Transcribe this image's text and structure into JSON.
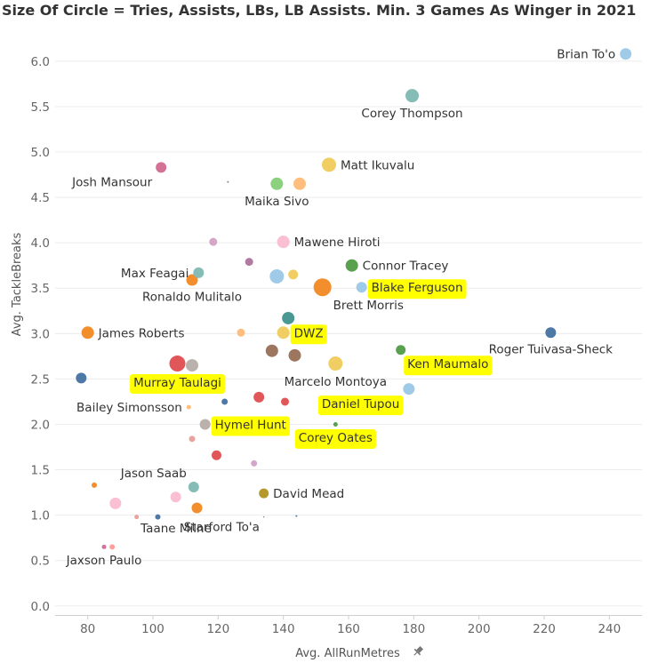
{
  "chart_data": {
    "type": "scatter",
    "title": "Size Of Circle = Tries, Assists, LBs, LB Assists. Min. 3 Games As Winger in 2021",
    "xlabel": "Avg. AllRunMetres",
    "ylabel": "Avg. TackleBreaks",
    "xlim": [
      70,
      250
    ],
    "ylim": [
      -0.1,
      6.4
    ],
    "x_ticks": [
      80,
      100,
      120,
      140,
      160,
      180,
      200,
      220,
      240
    ],
    "y_ticks": [
      0.0,
      0.5,
      1.0,
      1.5,
      2.0,
      2.5,
      3.0,
      3.5,
      4.0,
      4.5,
      5.0,
      5.5,
      6.0
    ],
    "grid": "horizontal",
    "xlabel_icon": "pin-icon",
    "highlight_color": "#FFFF00",
    "points": [
      {
        "label": "Brian To'o",
        "x": 245,
        "y": 6.08,
        "size": 6.5,
        "color": "#A0CBE8",
        "label_pos": "left"
      },
      {
        "label": "Corey Thompson",
        "x": 179.5,
        "y": 5.62,
        "size": 7.5,
        "color": "#86BCB6",
        "label_pos": "below"
      },
      {
        "label": "Matt Ikuvalu",
        "x": 154,
        "y": 4.86,
        "size": 8,
        "color": "#F1CE63",
        "label_pos": "right"
      },
      {
        "label": "Josh Mansour",
        "x": 102.5,
        "y": 4.83,
        "size": 6,
        "color": "#D37295",
        "label_pos": "below-left"
      },
      {
        "label": "",
        "x": 123,
        "y": 4.67,
        "size": 1,
        "color": "#888888"
      },
      {
        "label": "Maika Sivo",
        "x": 138,
        "y": 4.65,
        "size": 7,
        "color": "#8CD17D",
        "label_pos": "below"
      },
      {
        "label": "",
        "x": 145,
        "y": 4.65,
        "size": 7,
        "color": "#FFBE7D"
      },
      {
        "label": "Mawene Hiroti",
        "x": 140,
        "y": 4.01,
        "size": 7,
        "color": "#FABFD2",
        "label_pos": "right"
      },
      {
        "label": "",
        "x": 118.5,
        "y": 4.01,
        "size": 4.5,
        "color": "#D4A6C8"
      },
      {
        "label": "Max Feagai",
        "x": 114,
        "y": 3.67,
        "size": 6,
        "color": "#86BCB6",
        "label_pos": "left"
      },
      {
        "label": "",
        "x": 129.5,
        "y": 3.79,
        "size": 4.5,
        "color": "#B07AA1"
      },
      {
        "label": "Connor Tracey",
        "x": 161,
        "y": 3.75,
        "size": 7,
        "color": "#59A14F",
        "label_pos": "right"
      },
      {
        "label": "Ronaldo Mulitalo",
        "x": 112,
        "y": 3.59,
        "size": 6.5,
        "color": "#F28E2B",
        "label_pos": "below"
      },
      {
        "label": "",
        "x": 138,
        "y": 3.63,
        "size": 8,
        "color": "#A0CBE8"
      },
      {
        "label": "",
        "x": 143,
        "y": 3.65,
        "size": 5.5,
        "color": "#F1CE63"
      },
      {
        "label": "Brett Morris",
        "x": 152,
        "y": 3.51,
        "size": 10,
        "color": "#F28E2B",
        "label_pos": "below-right"
      },
      {
        "label": "Blake Ferguson",
        "x": 164,
        "y": 3.51,
        "size": 6,
        "color": "#A0CBE8",
        "label_pos": "right",
        "highlight": true
      },
      {
        "label": "",
        "x": 141.5,
        "y": 3.17,
        "size": 7,
        "color": "#499894"
      },
      {
        "label": "James Roberts",
        "x": 80,
        "y": 3.01,
        "size": 7,
        "color": "#F28E2B",
        "label_pos": "right"
      },
      {
        "label": "",
        "x": 127,
        "y": 3.01,
        "size": 4.5,
        "color": "#FFBE7D"
      },
      {
        "label": "DWZ",
        "x": 140,
        "y": 3.01,
        "size": 7,
        "color": "#F1CE63",
        "label_pos": "right",
        "highlight": true
      },
      {
        "label": "Roger Tuivasa-Sheck",
        "x": 222,
        "y": 3.01,
        "size": 6,
        "color": "#4E79A7",
        "label_pos": "below"
      },
      {
        "label": "",
        "x": 136.5,
        "y": 2.81,
        "size": 7,
        "color": "#9D7660"
      },
      {
        "label": "",
        "x": 143.5,
        "y": 2.76,
        "size": 7,
        "color": "#9D7660"
      },
      {
        "label": "Ken Maumalo",
        "x": 176,
        "y": 2.82,
        "size": 5.5,
        "color": "#59A14F",
        "label_pos": "below-right",
        "highlight": true
      },
      {
        "label": "Marcelo Montoya",
        "x": 156,
        "y": 2.67,
        "size": 8,
        "color": "#F1CE63",
        "label_pos": "below"
      },
      {
        "label": "Murray Taulagi",
        "x": 107.5,
        "y": 2.67,
        "size": 9,
        "color": "#E15759",
        "label_pos": "below",
        "highlight": true
      },
      {
        "label": "",
        "x": 112,
        "y": 2.65,
        "size": 7,
        "color": "#BAB0AC"
      },
      {
        "label": "",
        "x": 78,
        "y": 2.51,
        "size": 6,
        "color": "#4E79A7"
      },
      {
        "label": "Daniel Tupou",
        "x": 178.5,
        "y": 2.39,
        "size": 6.5,
        "color": "#A0CBE8",
        "label_pos": "below-left",
        "highlight": true
      },
      {
        "label": "",
        "x": 132.5,
        "y": 2.3,
        "size": 6,
        "color": "#E15759"
      },
      {
        "label": "",
        "x": 122,
        "y": 2.25,
        "size": 3.5,
        "color": "#4E79A7"
      },
      {
        "label": "",
        "x": 140.5,
        "y": 2.25,
        "size": 4.5,
        "color": "#E15759"
      },
      {
        "label": "Bailey Simonsson",
        "x": 111,
        "y": 2.19,
        "size": 2.5,
        "color": "#FFBE7D",
        "label_pos": "left"
      },
      {
        "label": "Hymel Hunt",
        "x": 116,
        "y": 2.0,
        "size": 6,
        "color": "#BAB0AC",
        "label_pos": "right",
        "highlight": true
      },
      {
        "label": "Corey Oates",
        "x": 156,
        "y": 2.0,
        "size": 2.5,
        "color": "#59A14F",
        "label_pos": "below",
        "highlight": true
      },
      {
        "label": "",
        "x": 112,
        "y": 1.84,
        "size": 3.5,
        "color": "#E8A39F"
      },
      {
        "label": "",
        "x": 119.5,
        "y": 1.66,
        "size": 5.5,
        "color": "#E15759"
      },
      {
        "label": "",
        "x": 131,
        "y": 1.57,
        "size": 3.5,
        "color": "#D4A6C8"
      },
      {
        "label": "Jason Saab",
        "x": 112.5,
        "y": 1.31,
        "size": 6,
        "color": "#86BCB6",
        "label_pos": "above-left"
      },
      {
        "label": "",
        "x": 82,
        "y": 1.33,
        "size": 3,
        "color": "#F28E2B"
      },
      {
        "label": "David Mead",
        "x": 134,
        "y": 1.24,
        "size": 5.5,
        "color": "#B6992D",
        "label_pos": "right"
      },
      {
        "label": "",
        "x": 107,
        "y": 1.2,
        "size": 6,
        "color": "#FABFD2"
      },
      {
        "label": "",
        "x": 88.5,
        "y": 1.13,
        "size": 6.5,
        "color": "#FABFD2"
      },
      {
        "label": "",
        "x": 113.5,
        "y": 1.08,
        "size": 6,
        "color": "#F28E2B"
      },
      {
        "label": "Taane Milne",
        "x": 95,
        "y": 0.98,
        "size": 2.5,
        "color": "#E8A39F",
        "label_pos": "below-right"
      },
      {
        "label": "",
        "x": 101.5,
        "y": 0.98,
        "size": 3,
        "color": "#4E79A7"
      },
      {
        "label": "Starford To'a",
        "x": 134,
        "y": 0.98,
        "size": 0.8,
        "color": "#888888",
        "label_pos": "below-left"
      },
      {
        "label": "",
        "x": 144,
        "y": 0.99,
        "size": 1,
        "color": "#4E79A7"
      },
      {
        "label": "Jaxson Paulo",
        "x": 85,
        "y": 0.65,
        "size": 2.5,
        "color": "#D37295",
        "label_pos": "below"
      },
      {
        "label": "",
        "x": 87.5,
        "y": 0.65,
        "size": 3,
        "color": "#FF9D9A"
      }
    ]
  }
}
